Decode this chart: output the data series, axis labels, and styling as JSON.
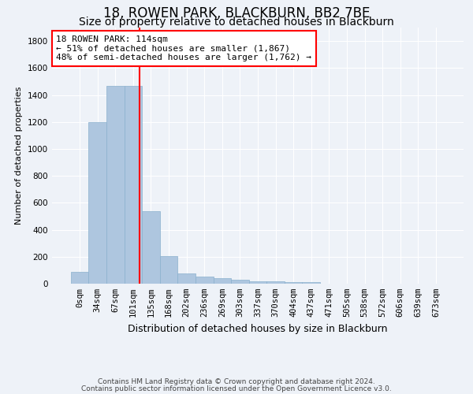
{
  "title": "18, ROWEN PARK, BLACKBURN, BB2 7BE",
  "subtitle": "Size of property relative to detached houses in Blackburn",
  "xlabel": "Distribution of detached houses by size in Blackburn",
  "ylabel": "Number of detached properties",
  "bar_labels": [
    "0sqm",
    "34sqm",
    "67sqm",
    "101sqm",
    "135sqm",
    "168sqm",
    "202sqm",
    "236sqm",
    "269sqm",
    "303sqm",
    "337sqm",
    "370sqm",
    "404sqm",
    "437sqm",
    "471sqm",
    "505sqm",
    "538sqm",
    "572sqm",
    "606sqm",
    "639sqm",
    "673sqm"
  ],
  "bar_values": [
    90,
    1200,
    1470,
    1465,
    540,
    205,
    75,
    50,
    40,
    28,
    20,
    15,
    12,
    10,
    0,
    0,
    0,
    0,
    0,
    0,
    0
  ],
  "bar_color": "#aec6df",
  "bar_edgecolor": "#8ab0ce",
  "vline_color": "red",
  "vline_pos": 3.38,
  "annotation_text": "18 ROWEN PARK: 114sqm\n← 51% of detached houses are smaller (1,867)\n48% of semi-detached houses are larger (1,762) →",
  "annotation_box_color": "white",
  "annotation_box_edge": "red",
  "ylim": [
    0,
    1900
  ],
  "yticks": [
    0,
    200,
    400,
    600,
    800,
    1000,
    1200,
    1400,
    1600,
    1800
  ],
  "footer_line1": "Contains HM Land Registry data © Crown copyright and database right 2024.",
  "footer_line2": "Contains public sector information licensed under the Open Government Licence v3.0.",
  "background_color": "#eef2f8",
  "grid_color": "#ffffff",
  "title_fontsize": 12,
  "subtitle_fontsize": 10,
  "xlabel_fontsize": 9,
  "ylabel_fontsize": 8,
  "tick_fontsize": 7.5,
  "annotation_fontsize": 8,
  "footer_fontsize": 6.5
}
